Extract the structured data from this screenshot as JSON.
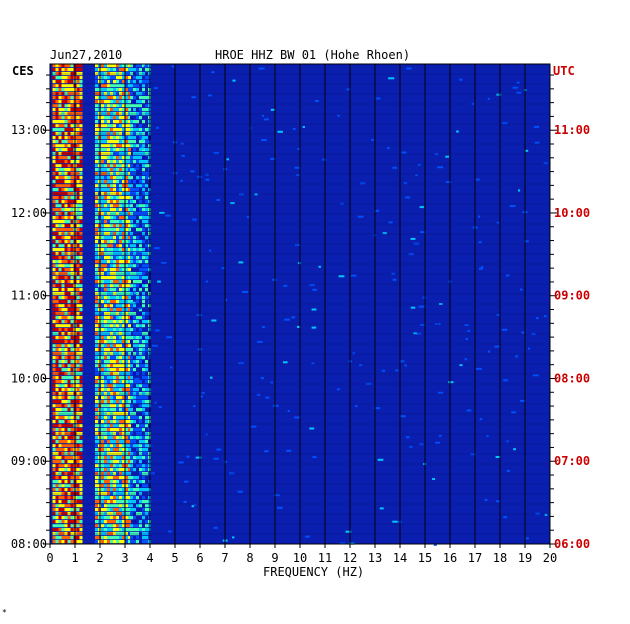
{
  "chart_data": {
    "type": "heatmap",
    "title": "HROE HHZ BW 01 (Hohe Rhoen)",
    "date": "Jun27,2010",
    "xlabel": "FREQUENCY (HZ)",
    "xlim": [
      0,
      20
    ],
    "x_ticks": [
      "0",
      "1",
      "2",
      "3",
      "4",
      "5",
      "6",
      "7",
      "8",
      "9",
      "10",
      "11",
      "12",
      "13",
      "14",
      "15",
      "16",
      "17",
      "18",
      "19",
      "20"
    ],
    "left_axis": {
      "label": "CES",
      "ticks": [
        "13:00",
        "12:00",
        "11:00",
        "10:00",
        "09:00",
        "08:00"
      ],
      "color": "#000000"
    },
    "right_axis": {
      "label": "UTC",
      "ticks": [
        "11:00",
        "10:00",
        "09:00",
        "08:00",
        "07:00",
        "06:00"
      ],
      "color": "#cc0000"
    },
    "time_range_ces": [
      "08:00",
      "13:48"
    ],
    "background_color": "#0a1fb0",
    "colormap": [
      "#0010c0",
      "#0050ff",
      "#00c8ff",
      "#40ffb0",
      "#ffff00",
      "#ff6000",
      "#c00000"
    ],
    "energy_bands": [
      {
        "from_hz": 0.1,
        "to_hz": 1.2,
        "level": "high"
      },
      {
        "from_hz": 1.8,
        "to_hz": 3.2,
        "level": "medium"
      },
      {
        "from_hz": 3.2,
        "to_hz": 4.0,
        "level": "low"
      }
    ]
  },
  "footer_mark": "*"
}
